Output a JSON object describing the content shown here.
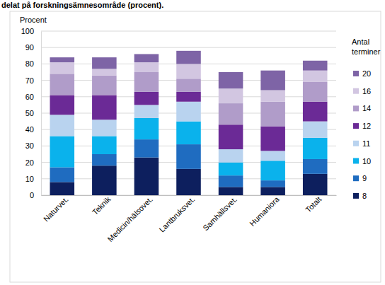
{
  "chart_data": {
    "type": "bar",
    "stacked": true,
    "grid": true,
    "legend": "right",
    "title": "delat på forskningsämnesområde (procent).",
    "y_label": "Procent",
    "legend_title": "Antal terminer",
    "categories": [
      "Naturvet.",
      "Teknik",
      "Medicin/hälsovet.",
      "Lantbruksvet.",
      "Samhällsvet.",
      "Humaniora",
      "Totalt"
    ],
    "ylim": [
      0,
      100
    ],
    "yticks": [
      0,
      10,
      20,
      30,
      40,
      50,
      60,
      70,
      80,
      90,
      100
    ],
    "series": [
      {
        "name": "8",
        "color": "#0d1f5e",
        "values": [
          8,
          18,
          23,
          16,
          5,
          5,
          13
        ]
      },
      {
        "name": "9",
        "color": "#1f6cc0",
        "values": [
          9,
          7,
          11,
          15,
          7,
          4,
          9
        ]
      },
      {
        "name": "10",
        "color": "#0ab2ec",
        "values": [
          19,
          11,
          13,
          14,
          8,
          12,
          13
        ]
      },
      {
        "name": "11",
        "color": "#b9d3ef",
        "values": [
          13,
          10,
          8,
          12,
          8,
          6,
          10
        ]
      },
      {
        "name": "12",
        "color": "#6b2a96",
        "values": [
          12,
          15,
          8,
          6,
          15,
          15,
          12
        ]
      },
      {
        "name": "14",
        "color": "#b09cc9",
        "values": [
          13,
          12,
          12,
          8,
          13,
          15,
          12
        ]
      },
      {
        "name": "16",
        "color": "#d2c6e1",
        "values": [
          7,
          4,
          6,
          9,
          9,
          7,
          7
        ]
      },
      {
        "name": "20",
        "color": "#7e64a6",
        "values": [
          3,
          7,
          5,
          8,
          10,
          12,
          6
        ]
      }
    ]
  }
}
